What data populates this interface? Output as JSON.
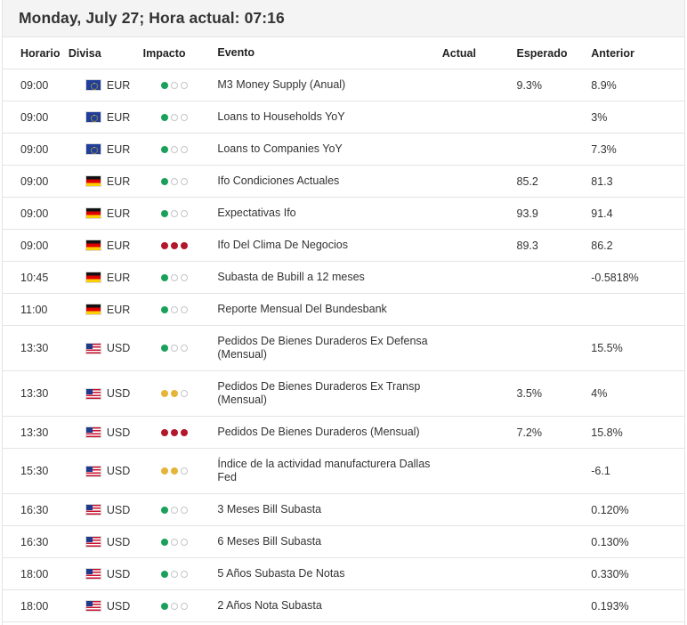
{
  "header": {
    "title": "Monday, July 27; Hora actual: 07:16"
  },
  "columns": {
    "time": "Horario",
    "currency": "Divisa",
    "impact": "Impacto",
    "event": "Evento",
    "actual": "Actual",
    "expected": "Esperado",
    "previous": "Anterior"
  },
  "colors": {
    "low": "#1aa05a",
    "medium": "#e6b43a",
    "high": "#b3172b"
  },
  "rows": [
    {
      "time": "09:00",
      "flag": "eu-flag-icon",
      "currency": "EUR",
      "impact": "low",
      "event": "M3 Money Supply (Anual)",
      "actual": "",
      "expected": "9.3%",
      "previous": "8.9%"
    },
    {
      "time": "09:00",
      "flag": "eu-flag-icon",
      "currency": "EUR",
      "impact": "low",
      "event": "Loans to Households YoY",
      "actual": "",
      "expected": "",
      "previous": "3%"
    },
    {
      "time": "09:00",
      "flag": "eu-flag-icon",
      "currency": "EUR",
      "impact": "low",
      "event": "Loans to Companies YoY",
      "actual": "",
      "expected": "",
      "previous": "7.3%"
    },
    {
      "time": "09:00",
      "flag": "germany-flag-icon",
      "currency": "EUR",
      "impact": "low",
      "event": "Ifo Condiciones Actuales",
      "actual": "",
      "expected": "85.2",
      "previous": "81.3"
    },
    {
      "time": "09:00",
      "flag": "germany-flag-icon",
      "currency": "EUR",
      "impact": "low",
      "event": "Expectativas Ifo",
      "actual": "",
      "expected": "93.9",
      "previous": "91.4"
    },
    {
      "time": "09:00",
      "flag": "germany-flag-icon",
      "currency": "EUR",
      "impact": "high",
      "event": "Ifo Del Clima De Negocios",
      "actual": "",
      "expected": "89.3",
      "previous": "86.2"
    },
    {
      "time": "10:45",
      "flag": "germany-flag-icon",
      "currency": "EUR",
      "impact": "low",
      "event": "Subasta de Bubill a 12 meses",
      "actual": "",
      "expected": "",
      "previous": "-0.5818%"
    },
    {
      "time": "11:00",
      "flag": "germany-flag-icon",
      "currency": "EUR",
      "impact": "low",
      "event": "Reporte Mensual Del Bundesbank",
      "actual": "",
      "expected": "",
      "previous": ""
    },
    {
      "time": "13:30",
      "flag": "us-flag-icon",
      "currency": "USD",
      "impact": "low",
      "event": "Pedidos De Bienes Duraderos Ex Defensa (Mensual)",
      "actual": "",
      "expected": "",
      "previous": "15.5%",
      "tall": true
    },
    {
      "time": "13:30",
      "flag": "us-flag-icon",
      "currency": "USD",
      "impact": "medium",
      "event": "Pedidos De Bienes Duraderos Ex Transp (Mensual)",
      "actual": "",
      "expected": "3.5%",
      "previous": "4%",
      "tall": true
    },
    {
      "time": "13:30",
      "flag": "us-flag-icon",
      "currency": "USD",
      "impact": "high",
      "event": "Pedidos De Bienes Duraderos (Mensual)",
      "actual": "",
      "expected": "7.2%",
      "previous": "15.8%"
    },
    {
      "time": "15:30",
      "flag": "us-flag-icon",
      "currency": "USD",
      "impact": "medium",
      "event": "Índice de la actividad manufacturera Dallas Fed",
      "actual": "",
      "expected": "",
      "previous": "-6.1",
      "tall": true
    },
    {
      "time": "16:30",
      "flag": "us-flag-icon",
      "currency": "USD",
      "impact": "low",
      "event": "3 Meses Bill Subasta",
      "actual": "",
      "expected": "",
      "previous": "0.120%"
    },
    {
      "time": "16:30",
      "flag": "us-flag-icon",
      "currency": "USD",
      "impact": "low",
      "event": "6 Meses Bill Subasta",
      "actual": "",
      "expected": "",
      "previous": "0.130%"
    },
    {
      "time": "18:00",
      "flag": "us-flag-icon",
      "currency": "USD",
      "impact": "low",
      "event": "5 Años Subasta De Notas",
      "actual": "",
      "expected": "",
      "previous": "0.330%"
    },
    {
      "time": "18:00",
      "flag": "us-flag-icon",
      "currency": "USD",
      "impact": "low",
      "event": "2 Años Nota Subasta",
      "actual": "",
      "expected": "",
      "previous": "0.193%"
    }
  ]
}
